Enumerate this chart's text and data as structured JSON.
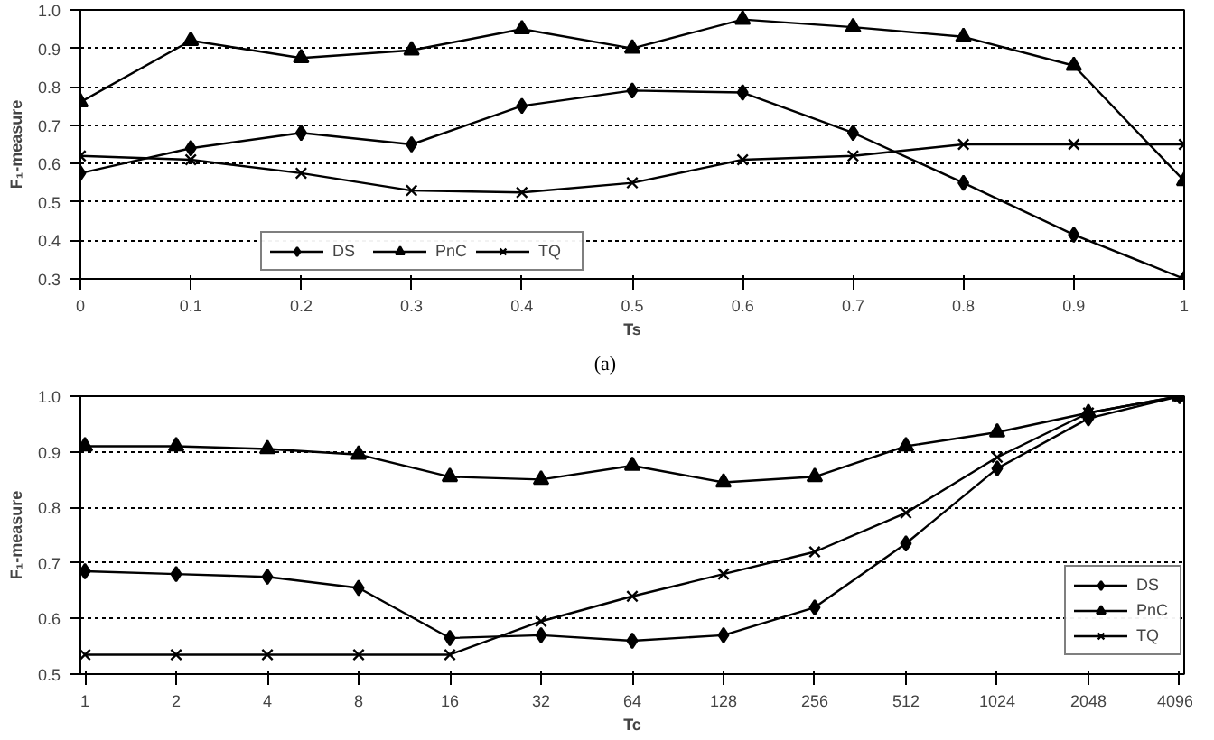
{
  "chart_data": [
    {
      "type": "line",
      "xlabel": "Ts",
      "ylabel": "F₁-measure",
      "x": [
        0,
        0.1,
        0.2,
        0.3,
        0.4,
        0.5,
        0.6,
        0.7,
        0.8,
        0.9,
        1
      ],
      "series": [
        {
          "name": "DS",
          "color": "#000000",
          "marker": "diamond",
          "values": [
            0.575,
            0.64,
            0.68,
            0.65,
            0.75,
            0.79,
            0.785,
            0.68,
            0.55,
            0.415,
            0.3
          ]
        },
        {
          "name": "PnC",
          "color": "#000000",
          "marker": "triangle",
          "values": [
            0.76,
            0.92,
            0.875,
            0.895,
            0.95,
            0.9,
            0.975,
            0.955,
            0.93,
            0.855,
            0.555
          ]
        },
        {
          "name": "TQ",
          "color": "#000000",
          "marker": "cross",
          "values": [
            0.62,
            0.61,
            0.575,
            0.53,
            0.525,
            0.55,
            0.61,
            0.62,
            0.65,
            0.65,
            0.65
          ]
        }
      ],
      "xlim": [
        0,
        1
      ],
      "xticks": [
        0,
        0.1,
        0.2,
        0.3,
        0.4,
        0.5,
        0.6,
        0.7,
        0.8,
        0.9,
        1
      ],
      "ylim": [
        0.3,
        1.0
      ],
      "yticks": [
        0.3,
        0.4,
        0.5,
        0.6,
        0.7,
        0.8,
        0.9,
        {
          "value": 1.0,
          "label": "1.0"
        }
      ],
      "grid": "y",
      "legend": "bottom left",
      "line_style": "solid",
      "annotations": [
        "(a)"
      ]
    },
    {
      "type": "line",
      "xlabel": "Tc",
      "ylabel": "F₁-measure",
      "categories": [
        "1",
        "2",
        "4",
        "8",
        "16",
        "32",
        "64",
        "128",
        "256",
        "512",
        "1024",
        "2048",
        "4096"
      ],
      "series": [
        {
          "name": "DS",
          "color": "#000000",
          "marker": "diamond",
          "values": [
            0.685,
            0.68,
            0.675,
            0.655,
            0.565,
            0.57,
            0.56,
            0.57,
            0.62,
            0.735,
            0.87,
            0.96,
            1.0
          ]
        },
        {
          "name": "PnC",
          "color": "#000000",
          "marker": "triangle",
          "values": [
            0.91,
            0.91,
            0.905,
            0.895,
            0.855,
            0.85,
            0.875,
            0.845,
            0.855,
            0.91,
            0.935,
            0.97,
            1.0
          ]
        },
        {
          "name": "TQ",
          "color": "#000000",
          "marker": "cross",
          "values": [
            0.535,
            0.535,
            0.535,
            0.535,
            0.535,
            0.595,
            0.64,
            0.68,
            0.72,
            0.79,
            0.89,
            0.97,
            1.0
          ]
        }
      ],
      "ylim": [
        0.5,
        1.0
      ],
      "yticks": [
        0.5,
        0.6,
        0.7,
        0.8,
        0.9,
        {
          "value": 1.0,
          "label": "1.0"
        }
      ],
      "grid": "y",
      "legend": "right",
      "line_style": "solid"
    }
  ]
}
